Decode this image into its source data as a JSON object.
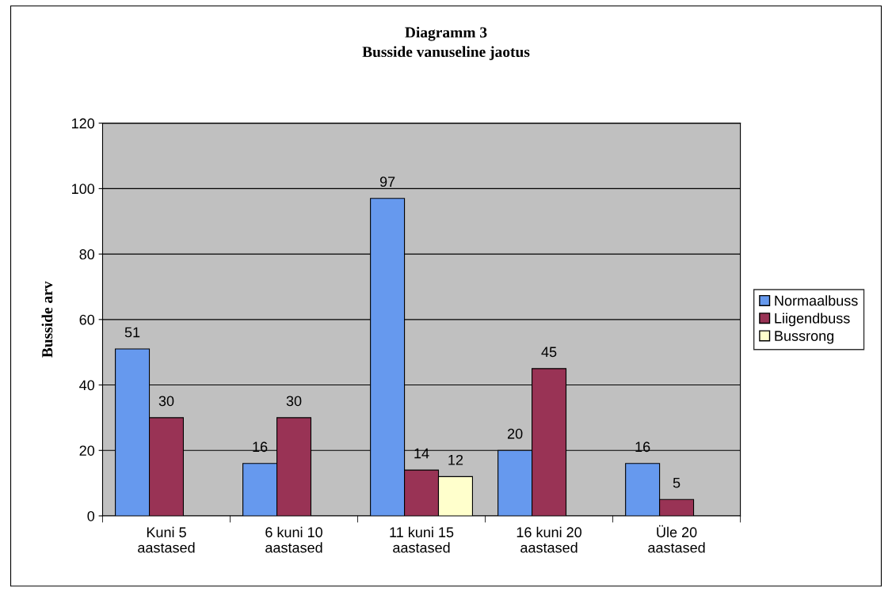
{
  "chart_data": {
    "type": "bar",
    "title": "Diagramm 3\nBusside vanuseline jaotus",
    "ylabel": "Busside arv",
    "categories": [
      "Kuni 5\naastased",
      "6 kuni 10\naastased",
      "11 kuni 15\naastased",
      "16 kuni 20\naastased",
      "Üle 20\naastased"
    ],
    "series": [
      {
        "name": "Normaalbuss",
        "color": "#6699ee",
        "values": [
          51,
          16,
          97,
          20,
          16
        ]
      },
      {
        "name": "Liigendbuss",
        "color": "#993355",
        "values": [
          30,
          30,
          14,
          45,
          5
        ]
      },
      {
        "name": "Bussrong",
        "color": "#ffffcc",
        "values": [
          null,
          null,
          12,
          null,
          null
        ]
      }
    ],
    "ylim": [
      0,
      120
    ],
    "yticks": [
      0,
      20,
      40,
      60,
      80,
      100,
      120
    ],
    "grid": "y",
    "legend": "right",
    "data_labels": true
  }
}
